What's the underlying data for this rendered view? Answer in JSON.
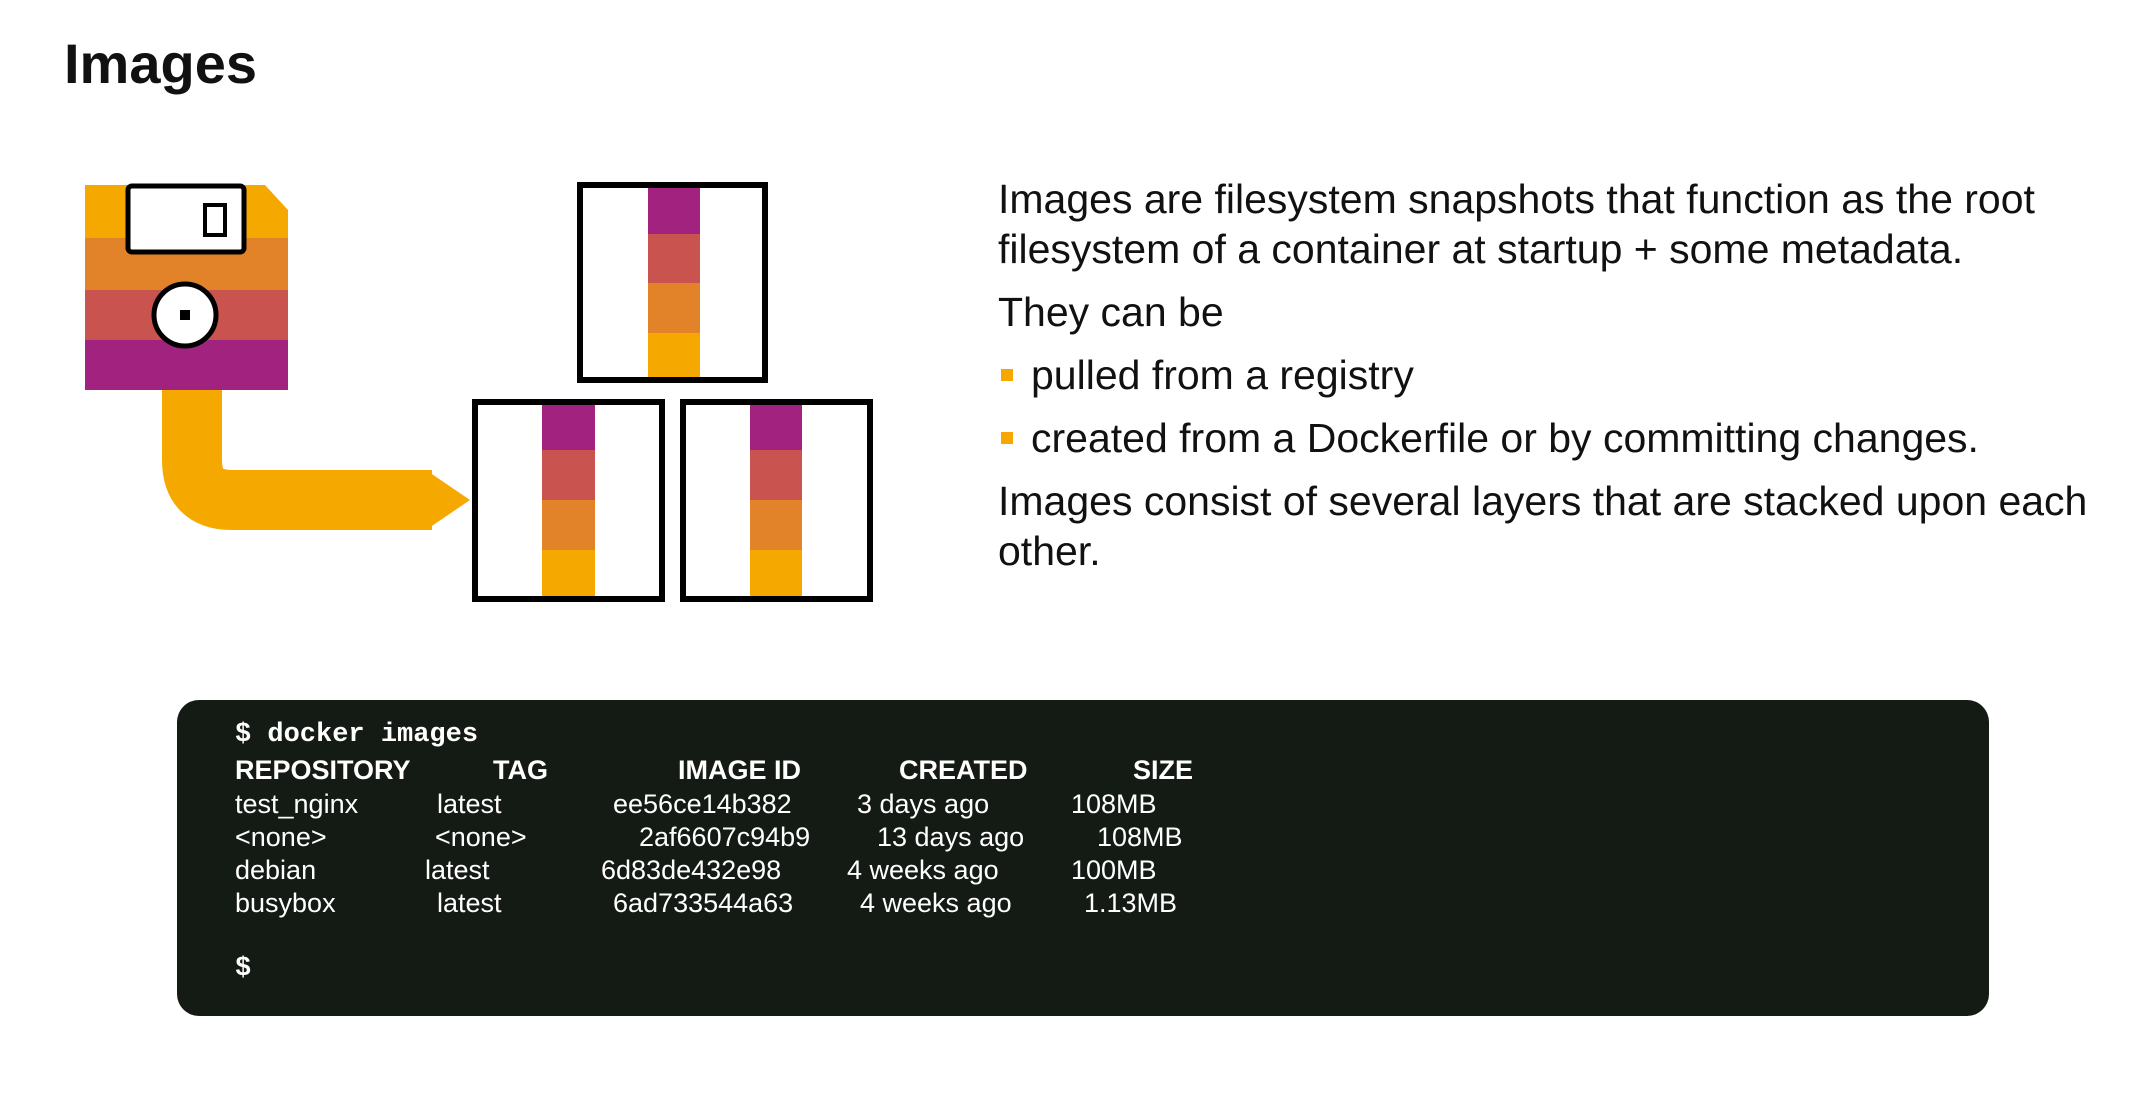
{
  "slide": {
    "title": "Images"
  },
  "description": {
    "intro": "Images are filesystem snapshots that function as the root filesystem of a container at startup + some metadata.",
    "sources_lead": "They can be",
    "sources": [
      "pulled from a registry",
      "created from a Dockerfile or by committing changes."
    ],
    "layers_note": "Images consist of several layers that are stacked upon each other."
  },
  "terminal": {
    "command": "$ docker images",
    "headers": [
      "REPOSITORY",
      "TAG",
      "IMAGE ID",
      "CREATED",
      "SIZE"
    ],
    "rows": [
      [
        "test_nginx",
        "latest",
        "ee56ce14b382",
        "3 days ago",
        "108MB"
      ],
      [
        "<none>",
        "<none>",
        "2af6607c94b9",
        "13 days ago",
        "108MB"
      ],
      [
        "debian",
        "latest",
        "6d83de432e98",
        "4 weeks ago",
        "100MB"
      ],
      [
        "busybox",
        "latest",
        "6ad733544a63",
        "4 weeks ago",
        "1.13MB"
      ]
    ],
    "prompt": "$"
  },
  "colors": {
    "orange": "#f5a800",
    "dark_orange": "#e38329",
    "red": "#c9534f",
    "purple": "#a2237f",
    "terminal_bg": "#141a14",
    "bullet": "#f5a800"
  },
  "icons": {
    "floppy": "floppy-disk-icon",
    "pipe": "pipe-arrow-icon",
    "containers": "container-stack-icon"
  }
}
